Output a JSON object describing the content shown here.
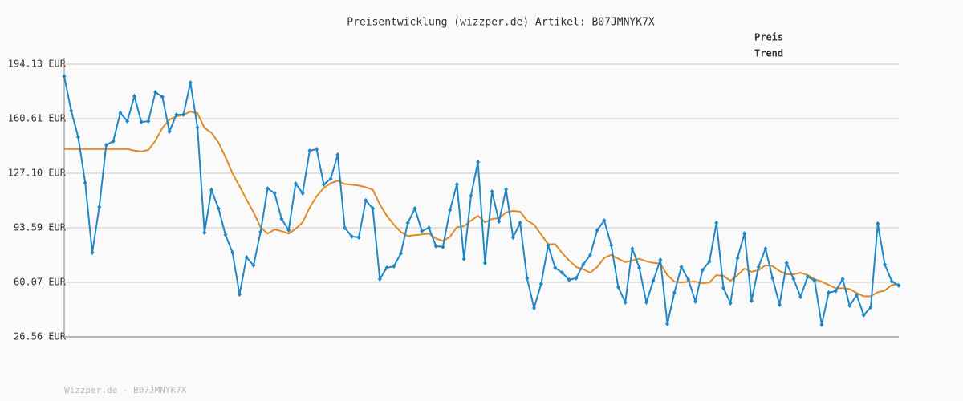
{
  "chart_data": {
    "type": "line",
    "title": "Preisentwicklung (wizzper.de) Artikel: B07JMNYK7X",
    "footer": "Wizzper.de - B07JMNYK7X",
    "ylim": [
      26.56,
      194.13
    ],
    "yticks": [
      {
        "value": 26.56,
        "label": "26.56 EUR"
      },
      {
        "value": 60.07,
        "label": "60.07 EUR"
      },
      {
        "value": 93.59,
        "label": "93.59 EUR"
      },
      {
        "value": 127.1,
        "label": "127.10 EUR"
      },
      {
        "value": 160.61,
        "label": "160.61 EUR"
      },
      {
        "value": 194.13,
        "label": "194.13 EUR"
      }
    ],
    "grid": true,
    "series": [
      {
        "name": "Preis",
        "color": "#1f87c6",
        "legend_color": "#1a7aa8",
        "markers": true,
        "values": [
          186.7,
          165.5,
          149.3,
          121.2,
          78.3,
          106.4,
          144.4,
          146.8,
          164.1,
          159.1,
          174.4,
          158.6,
          159.1,
          176.9,
          173.9,
          152.7,
          163.1,
          163.1,
          182.8,
          155.2,
          90.6,
          116.8,
          105.4,
          89.2,
          78.3,
          52.7,
          75.4,
          70.4,
          91.1,
          117.7,
          114.8,
          99.0,
          92.1,
          120.7,
          114.8,
          140.9,
          141.9,
          120.2,
          123.7,
          138.5,
          93.6,
          88.2,
          87.7,
          110.4,
          105.4,
          62.1,
          69.0,
          69.9,
          77.8,
          96.6,
          105.4,
          91.6,
          93.6,
          82.3,
          81.8,
          104.4,
          120.2,
          74.4,
          113.3,
          134.0,
          71.9,
          115.8,
          97.5,
          117.2,
          87.7,
          96.6,
          62.6,
          44.3,
          59.1,
          82.8,
          69.0,
          66.0,
          61.6,
          62.6,
          71.0,
          76.8,
          92.1,
          98.0,
          82.8,
          57.1,
          47.8,
          80.8,
          69.0,
          47.8,
          61.1,
          73.9,
          34.5,
          53.7,
          69.5,
          61.6,
          48.3,
          67.5,
          72.9,
          96.6,
          56.6,
          47.3,
          74.9,
          90.1,
          48.8,
          69.5,
          80.8,
          62.6,
          46.3,
          71.9,
          62.1,
          51.2,
          63.5,
          61.1,
          34.0,
          53.7,
          54.7,
          62.1,
          45.8,
          52.2,
          39.9,
          44.8,
          96.1,
          71.0,
          60.6,
          58.1
        ]
      },
      {
        "name": "Trend",
        "color": "#e08a24",
        "legend_color": "#d9861a",
        "markers": false,
        "values": [
          142,
          142,
          142,
          142,
          142,
          142,
          142,
          142,
          142,
          142,
          141,
          140.5,
          141.5,
          147,
          155,
          160,
          162,
          163,
          165,
          164,
          155,
          152,
          146,
          137,
          127,
          119,
          111,
          103,
          94,
          90,
          92.5,
          91.5,
          90,
          93,
          97,
          106,
          113,
          118,
          121,
          122.5,
          120.5,
          120,
          119.5,
          118.5,
          117,
          108,
          101,
          95.5,
          91,
          88.5,
          89,
          89.5,
          90,
          87,
          85.5,
          88,
          94,
          94.5,
          98,
          101,
          97,
          99,
          99.5,
          103,
          104,
          103.5,
          98,
          95.5,
          89.5,
          83.5,
          83.5,
          78,
          73.5,
          69.5,
          68,
          66,
          69.5,
          75,
          77,
          74.5,
          72.5,
          73.5,
          74.5,
          73,
          72,
          71.5,
          64.5,
          60.5,
          60,
          60.5,
          60.5,
          59.5,
          60,
          64.5,
          64,
          61,
          64.5,
          68.5,
          66.5,
          67.5,
          70.5,
          70,
          67,
          65,
          65,
          66,
          64.5,
          62,
          60.5,
          58.5,
          56.5,
          56.5,
          56,
          53.5,
          51.5,
          51.5,
          54,
          55,
          58.5,
          59
        ]
      }
    ]
  }
}
